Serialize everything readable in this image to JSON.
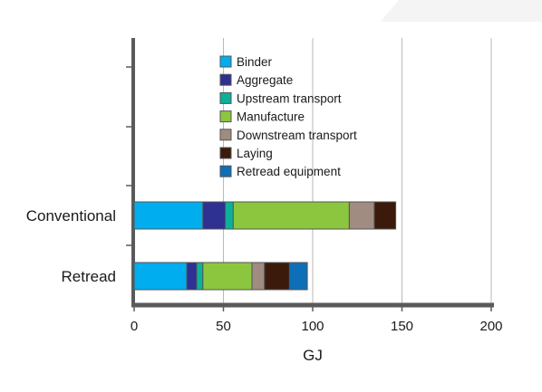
{
  "chart_data": {
    "type": "bar",
    "orientation": "horizontal",
    "stacked": true,
    "title": "",
    "xlabel": "GJ",
    "ylabel": "",
    "xlim": [
      0,
      200
    ],
    "x_ticks": [
      0,
      50,
      100,
      150,
      200
    ],
    "x_tick_labels": [
      "0",
      "50",
      "100",
      "150",
      "200"
    ],
    "grid": "vertical",
    "legend_position": "top-center (inside plot)",
    "categories": [
      "Conventional",
      "Retread"
    ],
    "series": [
      {
        "name": "Binder",
        "color": "#00aeef",
        "values": [
          38.5,
          29.5
        ]
      },
      {
        "name": "Aggregate",
        "color": "#2e3192",
        "values": [
          12.5,
          5.5
        ]
      },
      {
        "name": "Upstream transport",
        "color": "#0db09a",
        "values": [
          4.5,
          3.5
        ]
      },
      {
        "name": "Manufacture",
        "color": "#8cc63f",
        "values": [
          65,
          27.5
        ]
      },
      {
        "name": "Downstream transport",
        "color": "#a08c80",
        "values": [
          14,
          7
        ]
      },
      {
        "name": "Laying",
        "color": "#3b1a0c",
        "values": [
          12,
          14
        ]
      },
      {
        "name": "Retread equipment",
        "color": "#0d6fb7",
        "values": [
          0,
          10
        ]
      }
    ]
  }
}
